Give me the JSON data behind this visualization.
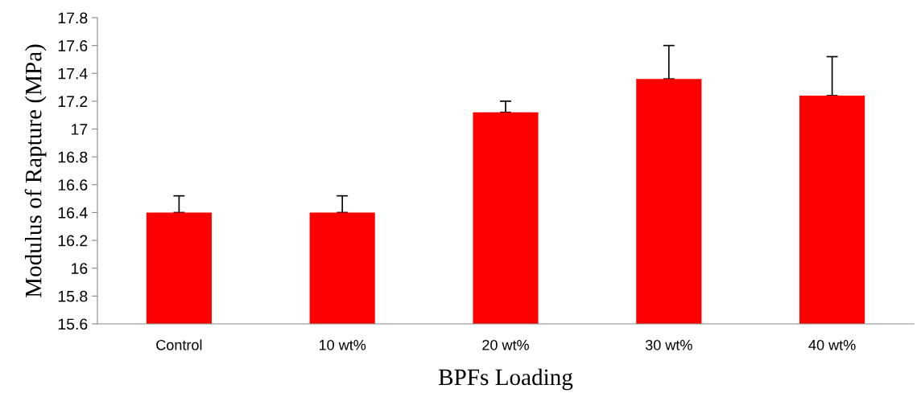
{
  "chart_data": {
    "type": "bar",
    "xlabel": "BPFs Loading",
    "ylabel": "Modulus of Rapture (MPa)",
    "categories": [
      "Control",
      "10 wt%",
      "20 wt%",
      "30 wt%",
      "40 wt%"
    ],
    "values": [
      16.4,
      16.4,
      17.12,
      17.36,
      17.24
    ],
    "errors": [
      [
        16.4,
        16.52
      ],
      [
        16.4,
        16.52
      ],
      [
        17.12,
        17.2
      ],
      [
        17.36,
        17.6
      ],
      [
        17.24,
        17.52
      ]
    ],
    "color": "#ff0000",
    "ylim": [
      15.6,
      17.8
    ],
    "yticks": [
      {
        "value": 15.6,
        "label": "15.6"
      },
      {
        "value": 15.8,
        "label": "15.8"
      },
      {
        "value": 16,
        "label": "16"
      },
      {
        "value": 16.2,
        "label": "16.2"
      },
      {
        "value": 16.4,
        "label": "16.4"
      },
      {
        "value": 16.6,
        "label": "16.6"
      },
      {
        "value": 16.8,
        "label": "16.8"
      },
      {
        "value": 17,
        "label": "17"
      },
      {
        "value": 17.2,
        "label": "17.2"
      },
      {
        "value": 17.4,
        "label": "17.4"
      },
      {
        "value": 17.6,
        "label": "17.6"
      },
      {
        "value": 17.8,
        "label": "17.8"
      }
    ],
    "grid": false,
    "legend": false
  }
}
